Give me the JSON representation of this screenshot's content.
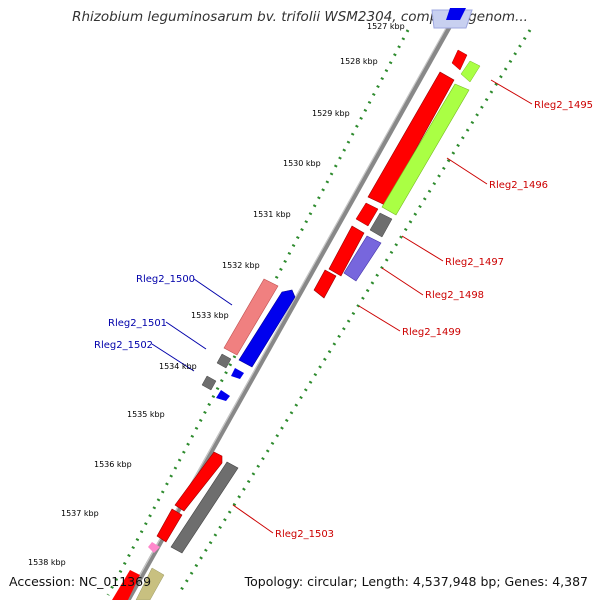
{
  "title": "Rhizobium leguminosarum bv. trifolii WSM2304, complete genom...",
  "footer": {
    "accession": "Accession: NC_011369",
    "summary": "Topology: circular; Length: 4,537,948 bp; Genes: 4,387"
  },
  "ticks": [
    "1527 kbp",
    "1528 kbp",
    "1529 kbp",
    "1530 kbp",
    "1531 kbp",
    "1532 kbp",
    "1533 kbp",
    "1534 kbp",
    "1535 kbp",
    "1536 kbp",
    "1537 kbp",
    "1538 kbp"
  ],
  "gene_labels": {
    "right": [
      "Rleg2_1495",
      "Rleg2_1496",
      "Rleg2_1497",
      "Rleg2_1498",
      "Rleg2_1499",
      "Rleg2_1503"
    ],
    "left": [
      "Rleg2_1500",
      "Rleg2_1501",
      "Rleg2_1502"
    ]
  },
  "colors": {
    "backbone": "#888888",
    "tick_dots": "#2e8b2e",
    "label_right": "#cc0000",
    "label_left": "#0000aa",
    "cds_red": "#ff0000",
    "cds_green": "#aaff44",
    "cds_grey": "#6e6e6e",
    "cds_blue": "#0000ee",
    "cds_purple": "#7766dd",
    "cds_pink": "#f08080",
    "cds_olive": "#c8c080"
  }
}
